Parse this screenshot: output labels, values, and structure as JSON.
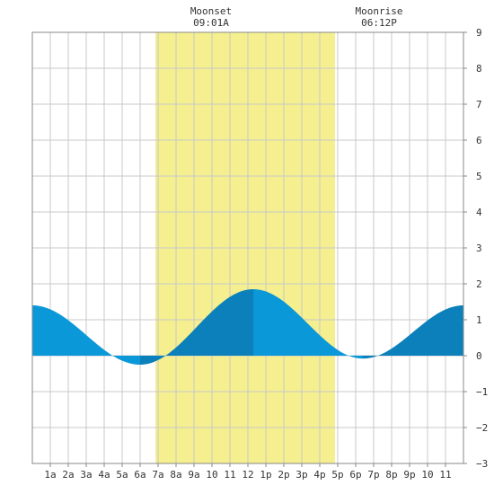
{
  "chart_data": {
    "type": "area",
    "x_tick_labels": [
      "1a",
      "2a",
      "3a",
      "4a",
      "5a",
      "6a",
      "7a",
      "8a",
      "9a",
      "10",
      "11",
      "12",
      "1p",
      "2p",
      "3p",
      "4p",
      "5p",
      "6p",
      "7p",
      "8p",
      "9p",
      "10",
      "11"
    ],
    "xlim": [
      0,
      24
    ],
    "ylim": [
      -3,
      9
    ],
    "y_ticks": [
      -3,
      -2,
      -1,
      0,
      1,
      2,
      3,
      4,
      5,
      6,
      7,
      8,
      9
    ],
    "grid": true,
    "annotations": [
      {
        "label": "Moonset",
        "time": "09:01A"
      },
      {
        "label": "Moonrise",
        "time": "06:12P"
      }
    ],
    "daylight_band_hours": [
      6.85,
      16.85
    ],
    "tide_extremes": [
      {
        "hour": 0.0,
        "height": 1.4
      },
      {
        "hour": 6.0,
        "height": -0.25
      },
      {
        "hour": 12.3,
        "height": 1.85
      },
      {
        "hour": 18.4,
        "height": -0.08
      },
      {
        "hour": 24.0,
        "height": 1.4
      }
    ],
    "colors": {
      "daylight": "#f5ef8f",
      "rising_fill": "#0b80ba",
      "falling_fill": "#0a98d8",
      "grid": "#c8c8c8",
      "axis_text": "#333333"
    }
  }
}
